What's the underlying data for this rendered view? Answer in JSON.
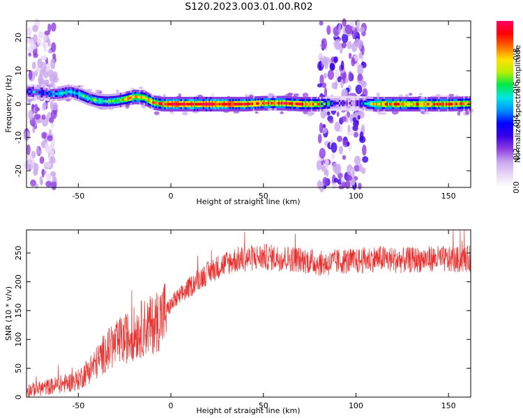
{
  "figure": {
    "title": "S120.2023.003.01.00.R02"
  },
  "colors": {
    "snr_line": "#e8302e",
    "background": "#ffffff",
    "axis": "#000000",
    "colormap": [
      "#ffffff",
      "#ead8f7",
      "#c9a7ee",
      "#8e3fe0",
      "#3a00e6",
      "#0000ff",
      "#0090ff",
      "#00e5e5",
      "#00e84a",
      "#b9f000",
      "#ffe000",
      "#ff6a00",
      "#ff0000",
      "#ff0066"
    ]
  },
  "chart_data": [
    {
      "type": "heatmap",
      "title": "",
      "xlabel": "Height of straight line (km)",
      "ylabel": "Frequency (Hz)",
      "xlim": [
        -78,
        162
      ],
      "ylim": [
        -25,
        25
      ],
      "xticks": [
        -50,
        0,
        50,
        100,
        150
      ],
      "xtick_labels": [
        "-50",
        "0",
        "50",
        "100",
        "150"
      ],
      "yticks": [
        -20,
        -10,
        0,
        10,
        20
      ],
      "ytick_labels": [
        "-20",
        "-10",
        "0",
        "10",
        "20"
      ],
      "grid": false,
      "colorbar": {
        "label": "Normalized spectral amplitude",
        "range": [
          0,
          1
        ],
        "ticks": [
          0.0,
          0.2,
          0.4,
          0.6,
          0.8
        ],
        "tick_labels": [
          "0.0",
          "0.2",
          "0.4",
          "0.6",
          "0.8"
        ]
      },
      "ridge": {
        "x": [
          -78,
          -70,
          -65,
          -60,
          -55,
          -50,
          -45,
          -40,
          -35,
          -30,
          -25,
          -20,
          -15,
          -10,
          -5,
          0,
          10,
          20,
          30,
          40,
          50,
          60,
          70,
          80,
          90,
          100,
          110,
          120,
          130,
          140,
          150,
          162
        ],
        "frequency": [
          3.8,
          3.5,
          3.0,
          3.2,
          3.8,
          3.0,
          1.8,
          1.0,
          0.8,
          1.0,
          1.5,
          2.2,
          2.0,
          0.5,
          0.0,
          0.0,
          0.0,
          0.0,
          0.0,
          0.0,
          0.3,
          0.3,
          0.0,
          0.0,
          0.3,
          0.3,
          0.0,
          0.0,
          0.0,
          0.0,
          0.0,
          0.2
        ],
        "amplitude": [
          0.45,
          0.5,
          0.5,
          0.55,
          0.5,
          0.55,
          0.6,
          0.6,
          0.6,
          0.65,
          0.75,
          0.85,
          0.75,
          0.85,
          0.9,
          0.95,
          0.95,
          0.95,
          0.95,
          0.9,
          0.85,
          0.85,
          0.9,
          0.8,
          0.3,
          0.3,
          0.8,
          0.85,
          0.8,
          0.85,
          0.85,
          0.8
        ]
      },
      "noise_bands": [
        {
          "x_range": [
            -78,
            -62
          ],
          "amplitude": 0.15
        },
        {
          "x_range": [
            80,
            105
          ],
          "amplitude": 0.2
        }
      ]
    },
    {
      "type": "line",
      "title": "",
      "xlabel": "Height of straight line (km)",
      "ylabel": "SNR (10 * v/v)",
      "xlim": [
        -78,
        162
      ],
      "ylim": [
        0,
        290
      ],
      "xticks": [
        -50,
        0,
        50,
        100,
        150
      ],
      "xtick_labels": [
        "-50",
        "0",
        "50",
        "100",
        "150"
      ],
      "yticks": [
        0,
        50,
        100,
        150,
        200,
        250
      ],
      "ytick_labels": [
        "0",
        "50",
        "100",
        "150",
        "200",
        "250"
      ],
      "grid": false,
      "series": [
        {
          "x": [
            -78,
            -70,
            -60,
            -55,
            -50,
            -45,
            -40,
            -35,
            -30,
            -25,
            -20,
            -15,
            -10,
            -5,
            0,
            5,
            10,
            15,
            20,
            25,
            30,
            35,
            40,
            45,
            50,
            55,
            60,
            65,
            70,
            75,
            80,
            85,
            90,
            95,
            100,
            105,
            110,
            115,
            120,
            125,
            130,
            135,
            140,
            145,
            150,
            155,
            162
          ],
          "y": [
            12,
            15,
            22,
            25,
            30,
            45,
            60,
            80,
            90,
            100,
            110,
            120,
            125,
            140,
            160,
            175,
            190,
            205,
            215,
            225,
            232,
            238,
            240,
            242,
            243,
            242,
            241,
            240,
            238,
            236,
            232,
            232,
            235,
            236,
            235,
            238,
            240,
            240,
            238,
            237,
            238,
            239,
            240,
            240,
            238,
            238,
            240
          ]
        }
      ]
    }
  ]
}
